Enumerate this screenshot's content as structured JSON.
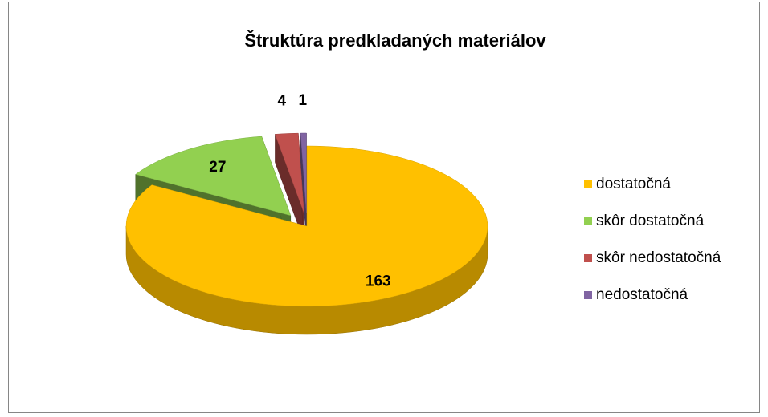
{
  "chart_data": {
    "type": "pie",
    "title": "Štruktúra predkladaných materiálov",
    "categories": [
      "dostatočná",
      "skôr dostatočná",
      "skôr nedostatočná",
      "nedostatočná"
    ],
    "values": [
      163,
      27,
      4,
      1
    ],
    "colors": [
      "#ffc000",
      "#92d050",
      "#c0504d",
      "#8064a2"
    ],
    "legend": "right"
  }
}
